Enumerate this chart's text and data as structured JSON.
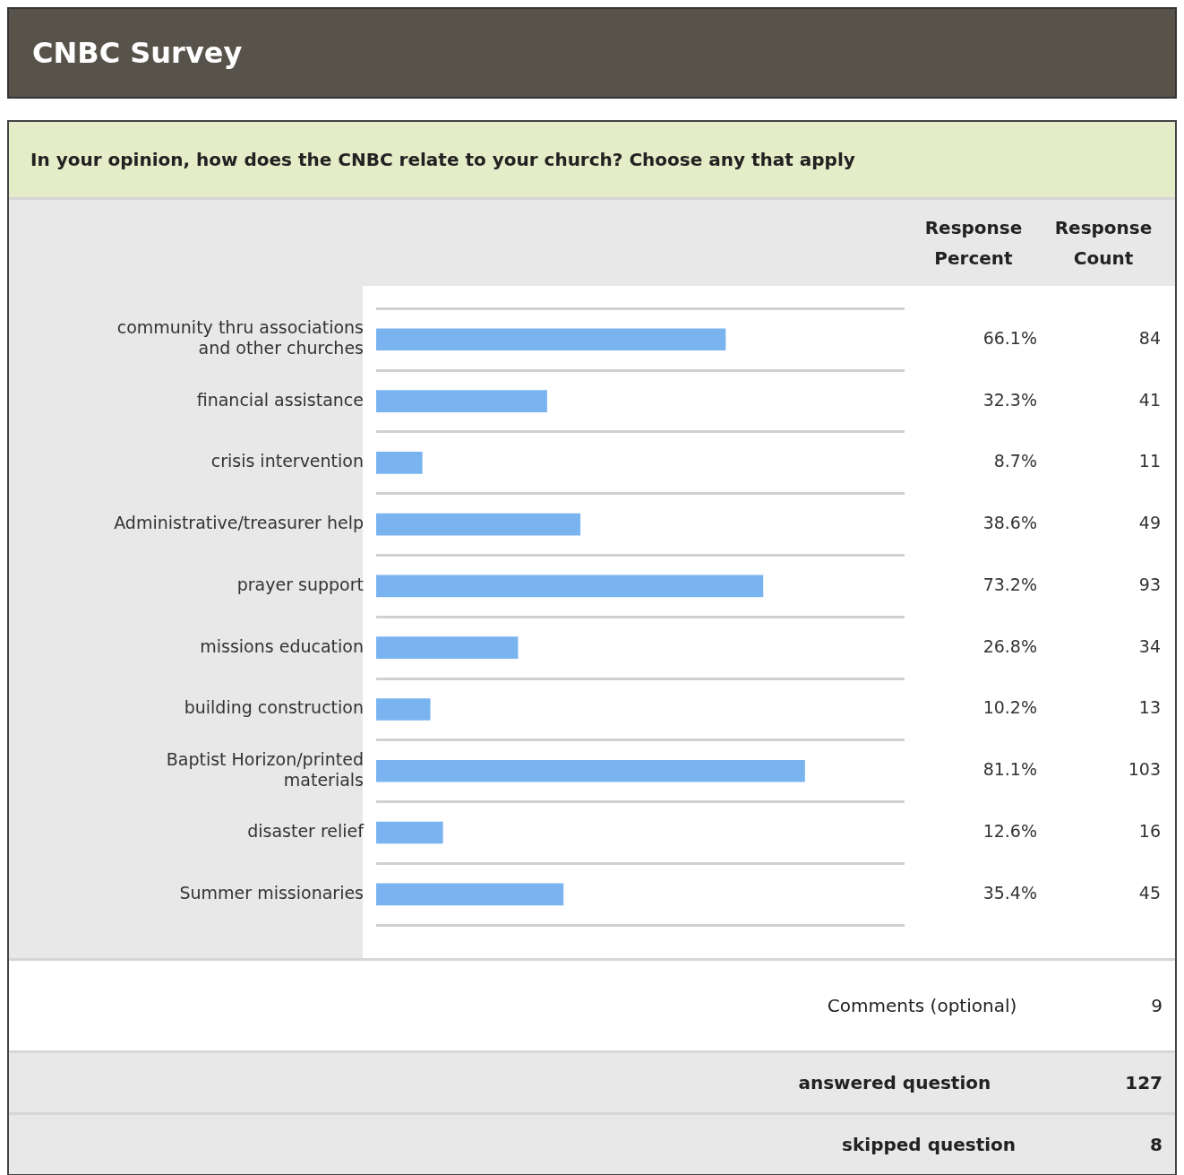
{
  "chart_data": {
    "type": "bar",
    "orientation": "horizontal",
    "title": "CNBC Survey",
    "subtitle": "In your opinion, how does the CNBC relate to your church? Choose any that apply",
    "categories": [
      "community thru associations and other churches",
      "financial assistance",
      "crisis intervention",
      "Administrative/treasurer help",
      "prayer support",
      "missions education",
      "building construction",
      "Baptist Horizon/printed materials",
      "disaster relief",
      "Summer missionaries"
    ],
    "values": [
      66.1,
      32.3,
      8.7,
      38.6,
      73.2,
      26.8,
      10.2,
      81.1,
      12.6,
      35.4
    ],
    "value_labels": [
      "66.1%",
      "32.3%",
      "8.7%",
      "38.6%",
      "73.2%",
      "26.8%",
      "10.2%",
      "81.1%",
      "12.6%",
      "35.4%"
    ],
    "color": "#7ab4f0",
    "annotations": [
      "Response Percent",
      "Response Count",
      "84",
      "41",
      "11",
      "49",
      "93",
      "34",
      "13",
      "103",
      "16",
      "45",
      "Comments (optional)",
      "9",
      "answered question",
      "127",
      "skipped question",
      "8"
    ],
    "grid": "y",
    "legend": false
  }
}
